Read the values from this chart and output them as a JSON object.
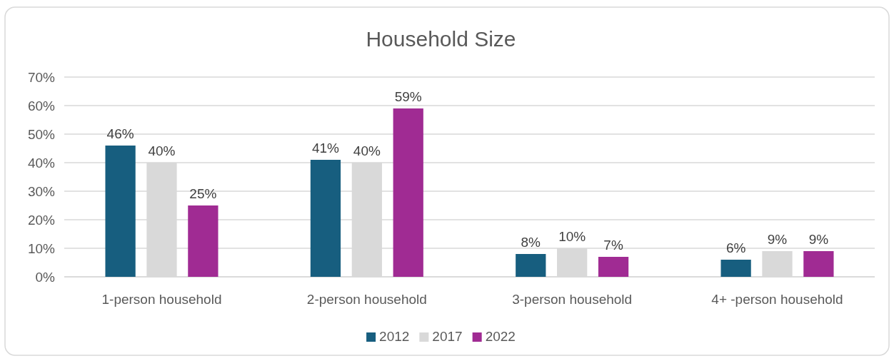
{
  "chart_data": {
    "type": "bar",
    "title": "Household Size",
    "categories": [
      "1-person household",
      "2-person household",
      "3-person household",
      "4+ -person household"
    ],
    "series": [
      {
        "name": "2012",
        "color": "#175e7f",
        "values": [
          46,
          41,
          8,
          6
        ],
        "value_labels": [
          "46%",
          "41%",
          "8%",
          "6%"
        ]
      },
      {
        "name": "2017",
        "color": "#d9d9d9",
        "values": [
          40,
          40,
          10,
          9
        ],
        "value_labels": [
          "40%",
          "40%",
          "10%",
          "9%"
        ]
      },
      {
        "name": "2022",
        "color": "#a02b93",
        "values": [
          25,
          59,
          7,
          9
        ],
        "value_labels": [
          "25%",
          "59%",
          "7%",
          "9%"
        ]
      }
    ],
    "ylim": [
      0,
      70
    ],
    "yticks": [
      {
        "value": 0,
        "label": "0%"
      },
      {
        "value": 10,
        "label": "10%"
      },
      {
        "value": 20,
        "label": "20%"
      },
      {
        "value": 30,
        "label": "30%"
      },
      {
        "value": 40,
        "label": "40%"
      },
      {
        "value": 50,
        "label": "50%"
      },
      {
        "value": 60,
        "label": "60%"
      },
      {
        "value": 70,
        "label": "70%"
      }
    ],
    "grid": "y",
    "legend": "bottom"
  }
}
